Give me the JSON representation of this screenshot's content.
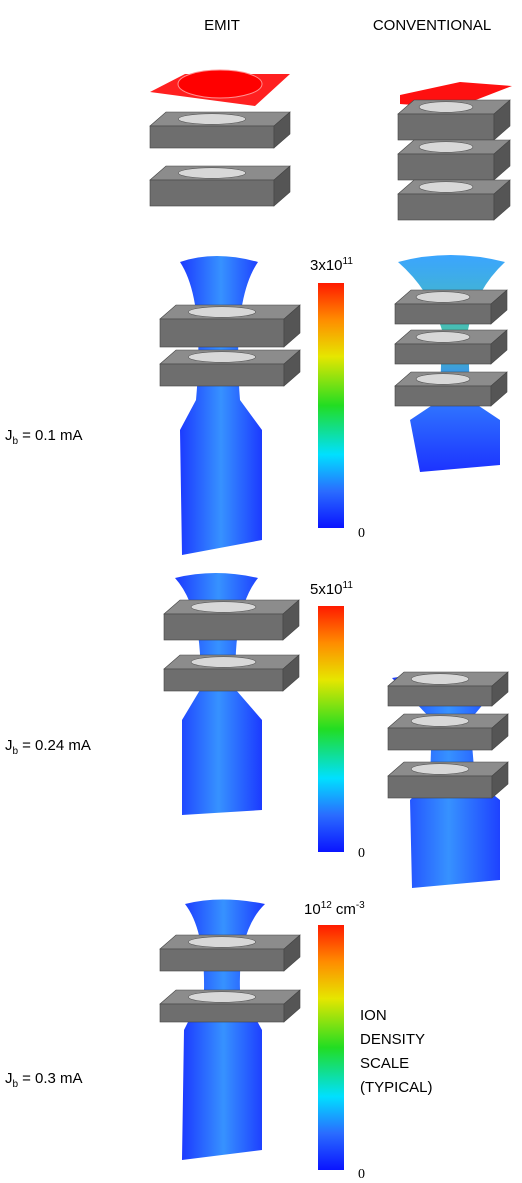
{
  "header": {
    "left": "EMIT",
    "right": "CONVENTIONAL"
  },
  "rows": [
    {
      "current": {
        "symbol": "J",
        "subscript": "b",
        "value": "= 0.1 mA"
      },
      "scale": {
        "max": {
          "base": "3x10",
          "exponent": "11"
        },
        "min": "0"
      }
    },
    {
      "current": {
        "symbol": "J",
        "subscript": "b",
        "value": "= 0.24 mA"
      },
      "scale": {
        "max": {
          "base": "5x10",
          "exponent": "11"
        },
        "min": "0"
      }
    },
    {
      "current": {
        "symbol": "J",
        "subscript": "b",
        "value": "= 0.3 mA"
      },
      "scale": {
        "max": {
          "base": "10",
          "exponent": "12",
          "unit": "cm",
          "unit_exponent": "-3"
        },
        "min": "0"
      }
    }
  ],
  "scale_note": [
    "ION",
    "DENSITY",
    "SCALE",
    "(TYPICAL)"
  ]
}
